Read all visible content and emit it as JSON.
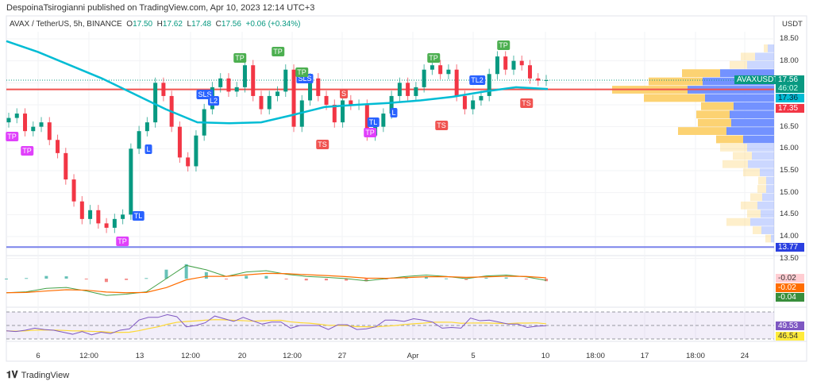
{
  "header": {
    "published": "DespoinaTsirogianni published on TradingView.com, Apr 10, 2023 12:14 UTC+3"
  },
  "legend": {
    "symbol": "AVAX / TetherUS, 5h, BINANCE",
    "open_label": "O",
    "open": "17.50",
    "high_label": "H",
    "high": "17.62",
    "low_label": "L",
    "low": "17.48",
    "close_label": "C",
    "close": "17.56",
    "change": "+0.06 (+0.34%)"
  },
  "price_axis": {
    "unit": "USDT",
    "ticks": [
      "18.50",
      "18.00",
      "16.50",
      "16.00",
      "15.50",
      "15.00",
      "14.50",
      "14.00",
      "13.50"
    ]
  },
  "badges": {
    "symbol": "AVAXUSDT",
    "last_price": "17.56",
    "countdown": "46:02",
    "ema": "17.36",
    "red_line": "17.35",
    "blue_line": "13.77",
    "macd_hist": "-0.02",
    "macd_signal": "-0.02",
    "macd_line": "-0.04",
    "rsi": "49.53",
    "rsi_ma": "46.54"
  },
  "time_axis": [
    "6",
    "12:00",
    "13",
    "12:00",
    "20",
    "12:00",
    "27",
    "Apr",
    "5",
    "10",
    "18:00",
    "17",
    "18:00",
    "24"
  ],
  "signals": [
    "TP",
    "TP",
    "TP",
    "L",
    "TL",
    "SLS",
    "L2",
    "TP",
    "TP",
    "TP",
    "SLS",
    "S",
    "TS",
    "TL",
    "TP",
    "L",
    "TP",
    "TL2",
    "TP",
    "TS",
    "TS"
  ],
  "footer": {
    "brand": "TradingView"
  },
  "colors": {
    "up": "#089981",
    "down": "#f23645",
    "ema": "#00bcd4",
    "red_line": "#f05350",
    "blue_line": "#7b83eb",
    "rsi": "#7e57c2",
    "rsi_ma": "#fdd835",
    "macd": "#43a047",
    "macd_signal": "#ff6d00",
    "vp_up": "#6b8cff",
    "vp_down": "#fcd06a"
  },
  "chart_data": {
    "type": "candlestick",
    "symbol": "AVAX / TetherUS",
    "interval": "5h",
    "ylabel": "USDT",
    "ylim": [
      13.5,
      18.6
    ],
    "first_open": 16.6,
    "closes": [
      16.7,
      16.8,
      16.4,
      16.5,
      16.6,
      16.2,
      15.9,
      15.3,
      14.8,
      14.4,
      14.6,
      14.3,
      14.2,
      14.4,
      14.5,
      16.0,
      16.4,
      16.6,
      17.5,
      17.2,
      16.5,
      15.8,
      15.6,
      16.3,
      16.9,
      17.4,
      17.6,
      17.3,
      17.4,
      17.9,
      17.2,
      16.9,
      17.2,
      17.3,
      17.8,
      16.5,
      17.1,
      17.6,
      17.2,
      17.0,
      16.6,
      17.1,
      17.0,
      17.0,
      16.3,
      16.5,
      16.8,
      17.2,
      17.5,
      17.2,
      17.4,
      17.8,
      17.9,
      17.7,
      17.8,
      17.2,
      16.9,
      17.1,
      17.2,
      17.7,
      18.1,
      17.8,
      18.0,
      17.9,
      17.6,
      17.55,
      17.56
    ],
    "ema": [
      18.45,
      18.2,
      17.9,
      17.6,
      17.25,
      16.9,
      16.6,
      16.58,
      16.6,
      16.77,
      16.95,
      17.0,
      17.04,
      17.1,
      17.18,
      17.3,
      17.4,
      17.36
    ],
    "horizontal_lines": [
      {
        "value": 17.35,
        "color": "#f05350"
      },
      {
        "value": 13.77,
        "color": "#7b83eb"
      },
      {
        "value": 17.56,
        "style": "dotted"
      }
    ],
    "volume_profile": {
      "up": [
        8,
        24,
        34,
        68,
        90,
        109,
        87,
        51,
        56,
        54,
        60,
        39,
        34,
        28,
        33,
        18,
        10,
        10,
        15,
        21,
        17,
        30,
        16,
        4
      ],
      "down": [
        5,
        18,
        22,
        48,
        68,
        95,
        77,
        41,
        42,
        42,
        61,
        34,
        34,
        24,
        32,
        21,
        10,
        11,
        15,
        21,
        17,
        30,
        11,
        7
      ],
      "value_area_rows": [
        3,
        11
      ],
      "price_range": [
        18.6,
        13.9
      ]
    },
    "macd": {
      "line": [
        -0.32,
        -0.3,
        -0.22,
        -0.2,
        -0.28,
        -0.38,
        -0.35,
        -0.3,
        0.0,
        0.3,
        0.2,
        0.05,
        0.15,
        0.18,
        0.1,
        0.05,
        0.03,
        0.0,
        -0.05,
        0.0,
        0.05,
        0.08,
        0.05,
        0.0,
        0.06,
        0.08,
        0.04,
        -0.04
      ],
      "ylim": [
        -0.45,
        0.45
      ]
    },
    "rsi": {
      "values": [
        42,
        41,
        43,
        46,
        44,
        43,
        40,
        37,
        41,
        36,
        40,
        38,
        43,
        45,
        58,
        62,
        62,
        66,
        63,
        48,
        50,
        54,
        64,
        60,
        56,
        62,
        57,
        52,
        55,
        55,
        46,
        50,
        50,
        50,
        44,
        51,
        51,
        44,
        45,
        48,
        58,
        58,
        56,
        60,
        58,
        55,
        46,
        47,
        46,
        61,
        57,
        58,
        55,
        52,
        52,
        47,
        49,
        49.53
      ],
      "bands": [
        70,
        50,
        30
      ]
    }
  }
}
